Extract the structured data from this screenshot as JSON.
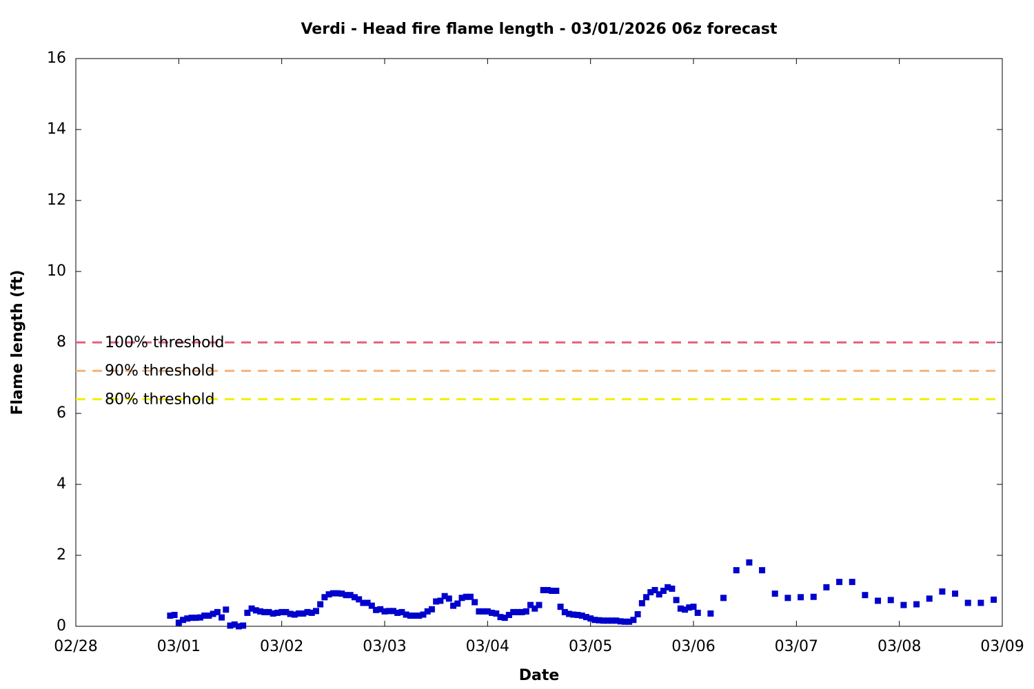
{
  "chart_data": {
    "type": "scatter",
    "title": "Verdi - Head fire flame length - 03/01/2026 06z forecast",
    "x_label": "Date",
    "y_label": "Flame length (ft)",
    "xlim": [
      0,
      216
    ],
    "xticks": [
      {
        "value": 0,
        "label": "02/28"
      },
      {
        "value": 24,
        "label": "03/01"
      },
      {
        "value": 48,
        "label": "03/02"
      },
      {
        "value": 72,
        "label": "03/03"
      },
      {
        "value": 96,
        "label": "03/04"
      },
      {
        "value": 120,
        "label": "03/05"
      },
      {
        "value": 144,
        "label": "03/06"
      },
      {
        "value": 168,
        "label": "03/07"
      },
      {
        "value": 192,
        "label": "03/08"
      },
      {
        "value": 216,
        "label": "03/09"
      }
    ],
    "ylim": [
      0,
      16
    ],
    "yticks": [
      0,
      2,
      4,
      6,
      8,
      10,
      12,
      14,
      16
    ],
    "thresholds": [
      {
        "name": "100% threshold",
        "value": 8,
        "color": "#e0607a"
      },
      {
        "name": "90% threshold",
        "value": 7.2,
        "color": "#f4b27a"
      },
      {
        "name": "80% threshold",
        "value": 6.4,
        "color": "#f0f000"
      }
    ],
    "series": [
      {
        "color": "#0000cc",
        "x": [
          22,
          23,
          24,
          25,
          26,
          27,
          28,
          29,
          30,
          31,
          32,
          33,
          34,
          35,
          36,
          37,
          38,
          39,
          40,
          41,
          42,
          43,
          44,
          45,
          46,
          47,
          48,
          49,
          50,
          51,
          52,
          53,
          54,
          55,
          56,
          57,
          58,
          59,
          60,
          61,
          62,
          63,
          64,
          65,
          66,
          67,
          68,
          69,
          70,
          71,
          72,
          73,
          74,
          75,
          76,
          77,
          78,
          79,
          80,
          81,
          82,
          83,
          84,
          85,
          86,
          87,
          88,
          89,
          90,
          91,
          92,
          93,
          94,
          95,
          96,
          97,
          98,
          99,
          100,
          101,
          102,
          103,
          104,
          105,
          106,
          107,
          108,
          109,
          110,
          111,
          112,
          113,
          114,
          115,
          116,
          117,
          118,
          119,
          120,
          121,
          122,
          123,
          124,
          125,
          126,
          127,
          128,
          129,
          130,
          131,
          132,
          133,
          134,
          135,
          136,
          137,
          138,
          139,
          140,
          141,
          142,
          143,
          144,
          145,
          148,
          151,
          154,
          157,
          160,
          163,
          166,
          169,
          172,
          175,
          178,
          181,
          184,
          187,
          190,
          193,
          196,
          199,
          202,
          205,
          208,
          211,
          214
        ],
        "values": [
          0.3,
          0.32,
          0.1,
          0.18,
          0.22,
          0.24,
          0.24,
          0.25,
          0.3,
          0.3,
          0.35,
          0.4,
          0.25,
          0.47,
          0.02,
          0.05,
          0.0,
          0.02,
          0.38,
          0.5,
          0.45,
          0.42,
          0.4,
          0.4,
          0.36,
          0.38,
          0.4,
          0.4,
          0.35,
          0.33,
          0.36,
          0.36,
          0.4,
          0.38,
          0.43,
          0.62,
          0.82,
          0.9,
          0.93,
          0.93,
          0.92,
          0.88,
          0.88,
          0.82,
          0.76,
          0.66,
          0.66,
          0.58,
          0.46,
          0.48,
          0.42,
          0.43,
          0.43,
          0.38,
          0.4,
          0.33,
          0.3,
          0.3,
          0.3,
          0.33,
          0.42,
          0.48,
          0.7,
          0.72,
          0.85,
          0.78,
          0.58,
          0.64,
          0.8,
          0.83,
          0.83,
          0.68,
          0.42,
          0.42,
          0.42,
          0.38,
          0.36,
          0.26,
          0.24,
          0.32,
          0.4,
          0.4,
          0.4,
          0.42,
          0.6,
          0.5,
          0.6,
          1.02,
          1.02,
          1.0,
          1.0,
          0.55,
          0.4,
          0.35,
          0.33,
          0.32,
          0.3,
          0.26,
          0.22,
          0.18,
          0.17,
          0.16,
          0.16,
          0.16,
          0.16,
          0.14,
          0.13,
          0.13,
          0.18,
          0.34,
          0.65,
          0.82,
          0.96,
          1.02,
          0.9,
          1.0,
          1.1,
          1.06,
          0.74,
          0.5,
          0.47,
          0.53,
          0.55,
          0.38,
          0.36,
          0.8,
          1.58,
          1.8,
          1.58,
          0.92,
          0.8,
          0.82,
          0.83,
          1.1,
          1.25,
          1.25,
          0.88,
          0.72,
          0.74,
          0.6,
          0.62,
          0.78,
          0.98,
          0.92,
          0.66,
          0.66,
          0.75
        ]
      }
    ]
  }
}
